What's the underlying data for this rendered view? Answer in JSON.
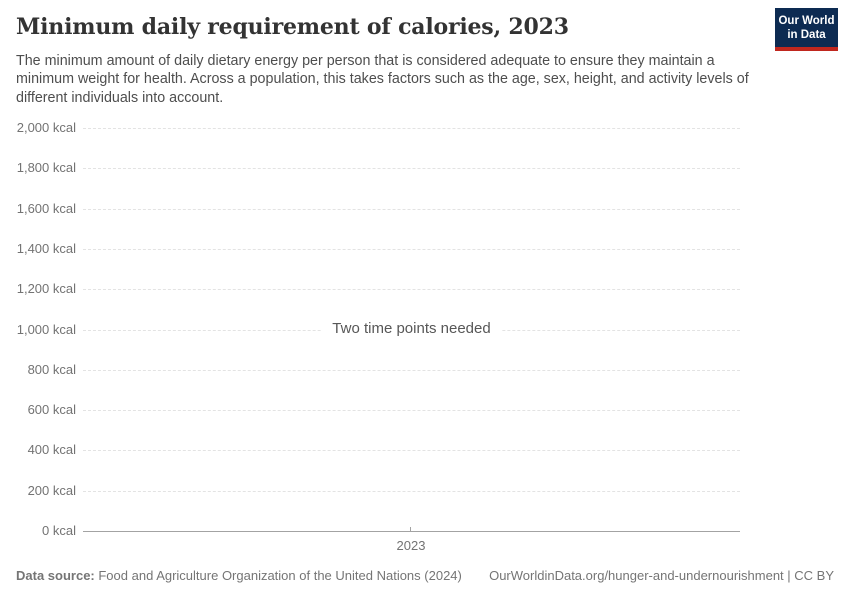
{
  "header": {
    "title": "Minimum daily requirement of calories, 2023",
    "subtitle": "The minimum amount of daily dietary energy per person that is considered adequate to ensure they maintain a minimum weight for health. Across a population, this takes factors such as the age, sex, height, and activity levels of different individuals into account."
  },
  "logo": {
    "line1": "Our World",
    "line2": "in Data",
    "bg_color": "#0d2b52",
    "accent_color": "#c0271e"
  },
  "chart_data": {
    "type": "line",
    "title": "Minimum daily requirement of calories, 2023",
    "note": "Two time points needed",
    "series": [],
    "x": {
      "ticks": [
        "2023"
      ]
    },
    "y": {
      "unit": "kcal",
      "ticks": [
        "2,000 kcal",
        "1,800 kcal",
        "1,600 kcal",
        "1,400 kcal",
        "1,200 kcal",
        "1,000 kcal",
        "800 kcal",
        "600 kcal",
        "400 kcal",
        "200 kcal",
        "0 kcal"
      ],
      "values": [
        2000,
        1800,
        1600,
        1400,
        1200,
        1000,
        800,
        600,
        400,
        200,
        0
      ],
      "range": [
        0,
        2000
      ]
    },
    "grid": {
      "style": "dashed",
      "color": "#e3e3e3",
      "axis_color": "#a3a3a3"
    }
  },
  "footer": {
    "datasource_label": "Data source:",
    "datasource_value": " Food and Agriculture Organization of the United Nations (2024)",
    "link_text": "OurWorldinData.org/hunger-and-undernourishment | CC BY"
  }
}
